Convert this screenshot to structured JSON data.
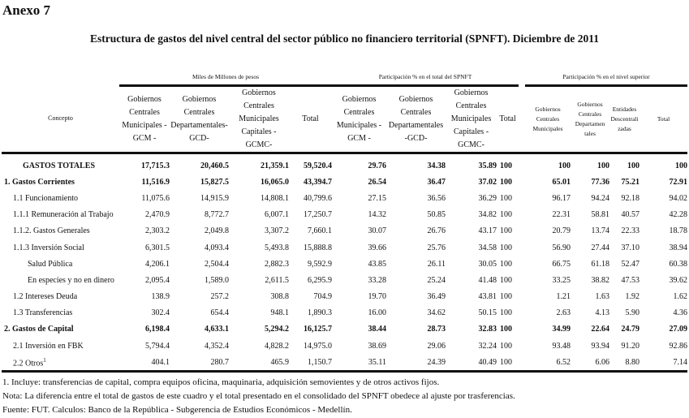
{
  "anexo": "Anexo 7",
  "title": "Estructura de gastos del nivel central  del sector público no financiero territorial (SPNFT). Diciembre de 2011",
  "groups": {
    "miles": "Miles de Millones de pesos",
    "part_total": "Participación % en el total del SPNFT",
    "part_superior": "Participación % en el nivel superior"
  },
  "headers": {
    "concepto": "Concepto",
    "miles": [
      "Gobiernos Centrales Municipales - GCM -",
      "Gobiernos Centrales Departamentales- GCD-",
      "Gobiernos Centrales Municipales Capitales -GCMC-",
      "Total"
    ],
    "part_total": [
      "Gobiernos Centrales Municipales -GCM -",
      "Gobiernos Centrales Departamentales -GCD-",
      "Gobiernos Centrales Municipales Capitales -GCMC-",
      "Total"
    ],
    "part_superior": [
      "Gobiernos Centrales Municipales",
      "Gobiernos Centrales Departamen tales",
      "Entidades Descentrali zadas",
      "Total"
    ]
  },
  "rows": [
    {
      "concepto": "GASTOS TOTALES",
      "bold": true,
      "indent": 2,
      "miles": [
        "17,715.3",
        "20,460.5",
        "21,359.1",
        "59,520.4"
      ],
      "part_total": [
        "29.76",
        "34.38",
        "35.89",
        "100"
      ],
      "part_superior": [
        "100",
        "100",
        "100",
        "100"
      ]
    },
    {
      "concepto": "1. Gastos Corrientes",
      "bold": true,
      "indent": 0,
      "miles": [
        "11,516.9",
        "15,827.5",
        "16,065.0",
        "43,394.7"
      ],
      "part_total": [
        "26.54",
        "36.47",
        "37.02",
        "100"
      ],
      "part_superior": [
        "65.01",
        "77.36",
        "75.21",
        "72.91"
      ]
    },
    {
      "concepto": "1.1 Funcionamiento",
      "indent": 1,
      "miles": [
        "11,075.6",
        "14,915.9",
        "14,808.1",
        "40,799.6"
      ],
      "part_total": [
        "27.15",
        "36.56",
        "36.29",
        "100"
      ],
      "part_superior": [
        "96.17",
        "94.24",
        "92.18",
        "94.02"
      ]
    },
    {
      "concepto": "1.1.1  Remuneración al Trabajo",
      "indent": 1,
      "miles": [
        "2,470.9",
        "8,772.7",
        "6,007.1",
        "17,250.7"
      ],
      "part_total": [
        "14.32",
        "50.85",
        "34.82",
        "100"
      ],
      "part_superior": [
        "22.31",
        "58.81",
        "40.57",
        "42.28"
      ]
    },
    {
      "concepto": "1.1.2.  Gastos Generales",
      "indent": 1,
      "miles": [
        "2,303.2",
        "2,049.8",
        "3,307.2",
        "7,660.1"
      ],
      "part_total": [
        "30.07",
        "26.76",
        "43.17",
        "100"
      ],
      "part_superior": [
        "20.79",
        "13.74",
        "22.33",
        "18.78"
      ]
    },
    {
      "concepto": "1.1.3 Inversión Social",
      "indent": 1,
      "miles": [
        "6,301.5",
        "4,093.4",
        "5,493.8",
        "15,888.8"
      ],
      "part_total": [
        "39.66",
        "25.76",
        "34.58",
        "100"
      ],
      "part_superior": [
        "56.90",
        "27.44",
        "37.10",
        "38.94"
      ]
    },
    {
      "concepto": "Salud Pública",
      "indent": 3,
      "miles": [
        "4,206.1",
        "2,504.4",
        "2,882.3",
        "9,592.9"
      ],
      "part_total": [
        "43.85",
        "26.11",
        "30.05",
        "100"
      ],
      "part_superior": [
        "66.75",
        "61.18",
        "52.47",
        "60.38"
      ]
    },
    {
      "concepto": "En especies y no en dinero",
      "indent": 3,
      "miles": [
        "2,095.4",
        "1,589.0",
        "2,611.5",
        "6,295.9"
      ],
      "part_total": [
        "33.28",
        "25.24",
        "41.48",
        "100"
      ],
      "part_superior": [
        "33.25",
        "38.82",
        "47.53",
        "39.62"
      ]
    },
    {
      "concepto": "1.2 Intereses  Deuda",
      "indent": 1,
      "miles": [
        "138.9",
        "257.2",
        "308.8",
        "704.9"
      ],
      "part_total": [
        "19.70",
        "36.49",
        "43.81",
        "100"
      ],
      "part_superior": [
        "1.21",
        "1.63",
        "1.92",
        "1.62"
      ]
    },
    {
      "concepto": "1.3 Transferencias",
      "indent": 1,
      "miles": [
        "302.4",
        "654.4",
        "948.1",
        "1,890.3"
      ],
      "part_total": [
        "16.00",
        "34.62",
        "50.15",
        "100"
      ],
      "part_superior": [
        "2.63",
        "4.13",
        "5.90",
        "4.36"
      ]
    },
    {
      "concepto": "2. Gastos de Capital",
      "bold": true,
      "indent": 0,
      "miles": [
        "6,198.4",
        "4,633.1",
        "5,294.2",
        "16,125.7"
      ],
      "part_total": [
        "38.44",
        "28.73",
        "32.83",
        "100"
      ],
      "part_superior": [
        "34.99",
        "22.64",
        "24.79",
        "27.09"
      ]
    },
    {
      "concepto": "2.1 Inversión en FBK",
      "indent": 1,
      "miles": [
        "5,794.4",
        "4,352.4",
        "4,828.2",
        "14,975.0"
      ],
      "part_total": [
        "38.69",
        "29.06",
        "32.24",
        "100"
      ],
      "part_superior": [
        "93.48",
        "93.94",
        "91.20",
        "92.86"
      ]
    },
    {
      "concepto": "2.2 Otros",
      "sup": "1",
      "indent": 1,
      "miles": [
        "404.1",
        "280.7",
        "465.9",
        "1,150.7"
      ],
      "part_total": [
        "35.11",
        "24.39",
        "40.49",
        "100"
      ],
      "part_superior": [
        "6.52",
        "6.06",
        "8.80",
        "7.14"
      ]
    }
  ],
  "notes": [
    "1. Incluye: transferencias de capital, compra equipos oficina, maquinaria, adquisición semovientes y de otros activos fijos.",
    "Nota: La diferencia entre el total de gastos de este cuadro y el total presentado en el consolidado del SPNFT obedece al ajuste por trasferencias.",
    "Fuente: FUT.   Calculos:  Banco de la República - Subgerencia de Estudios Económicos -  Medellín."
  ]
}
